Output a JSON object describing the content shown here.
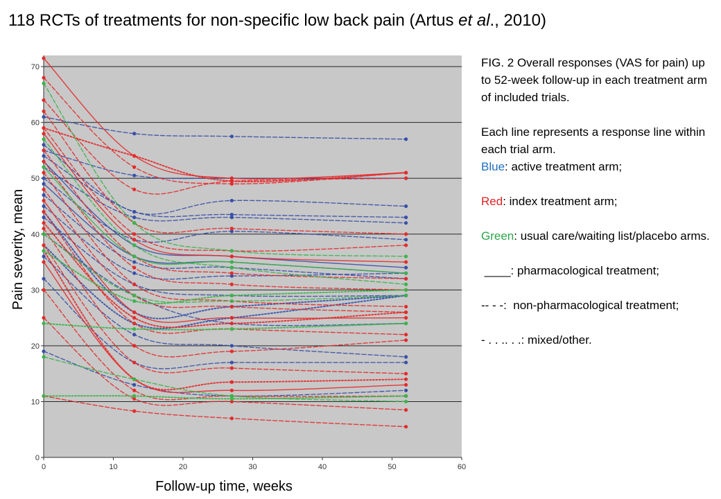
{
  "title": {
    "before": "118 RCTs of treatments for non-specific low back pain (Artus ",
    "etal": "et al",
    "after": "., 2010)"
  },
  "caption": {
    "fig": "FIG. 2 Overall responses (VAS for pain) up to 52-week follow-up in each treatment arm of included trials.",
    "intro": "Each line represents a response line within each trial arm.",
    "blue_word": "Blue",
    "blue_rest": ": active treatment arm;",
    "red_word": "Red",
    "red_rest": ": index treatment arm;",
    "green_word": "Green",
    "green_rest": ": usual care/waiting list/placebo arms.",
    "pharma": " ____: pharmacological treatment;",
    "nonpharma": "-- - -:  non-pharmacological treatment;",
    "mixed": "- . . .. . .: mixed/other."
  },
  "chart_data": {
    "type": "line",
    "xlabel": "Follow-up time, weeks",
    "ylabel": "Pain severity,  mean",
    "xlim": [
      0,
      60
    ],
    "ylim": [
      0,
      72
    ],
    "xticks": [
      0,
      10,
      20,
      30,
      40,
      50,
      60
    ],
    "yticks": [
      0,
      10,
      20,
      30,
      40,
      50,
      60,
      70
    ],
    "grid": "horizontal",
    "background": "#c8c8c8",
    "colors": {
      "blue": "#3850a8",
      "red": "#e52a2a",
      "green": "#3cb44a"
    },
    "series": [
      {
        "color": "blue",
        "style": "dashed",
        "x": [
          0,
          13,
          27,
          52
        ],
        "y": [
          61,
          58,
          57.5,
          57
        ]
      },
      {
        "color": "blue",
        "style": "dashed",
        "x": [
          0,
          13,
          27,
          52
        ],
        "y": [
          55,
          50.5,
          50,
          50
        ]
      },
      {
        "color": "blue",
        "style": "dashed",
        "x": [
          0,
          13,
          27,
          52
        ],
        "y": [
          56,
          44,
          46,
          45
        ]
      },
      {
        "color": "blue",
        "style": "dashed",
        "x": [
          0,
          13,
          27,
          52
        ],
        "y": [
          54,
          44,
          43.5,
          43
        ]
      },
      {
        "color": "blue",
        "style": "dashed",
        "x": [
          0,
          13,
          27,
          52
        ],
        "y": [
          52,
          43,
          43,
          42
        ]
      },
      {
        "color": "blue",
        "style": "dashed",
        "x": [
          0,
          13,
          27,
          52
        ],
        "y": [
          50,
          39,
          40.5,
          39
        ]
      },
      {
        "color": "blue",
        "style": "solid",
        "x": [
          0,
          13,
          27,
          52
        ],
        "y": [
          53,
          38,
          36,
          34
        ]
      },
      {
        "color": "blue",
        "style": "solid",
        "x": [
          0,
          13,
          27,
          52
        ],
        "y": [
          49,
          36,
          35,
          33
        ]
      },
      {
        "color": "blue",
        "style": "dashed",
        "x": [
          0,
          13,
          27,
          52
        ],
        "y": [
          47,
          35,
          34,
          32
        ]
      },
      {
        "color": "blue",
        "style": "dashed",
        "x": [
          0,
          13,
          27,
          52
        ],
        "y": [
          45,
          33,
          32.5,
          33
        ]
      },
      {
        "color": "blue",
        "style": "dashed",
        "x": [
          0,
          13,
          27,
          52
        ],
        "y": [
          43,
          31,
          29,
          29
        ]
      },
      {
        "color": "blue",
        "style": "dashed",
        "x": [
          0,
          13,
          27,
          52
        ],
        "y": [
          40,
          29,
          24,
          24
        ]
      },
      {
        "color": "blue",
        "style": "dashed",
        "x": [
          0,
          13,
          27,
          52
        ],
        "y": [
          36,
          22,
          20,
          18
        ]
      },
      {
        "color": "blue",
        "style": "dashed",
        "x": [
          0,
          13,
          27,
          52
        ],
        "y": [
          32,
          17,
          17,
          17
        ]
      },
      {
        "color": "blue",
        "style": "dashed",
        "x": [
          0,
          13,
          27,
          52
        ],
        "y": [
          19,
          13,
          11,
          12
        ]
      },
      {
        "color": "blue",
        "style": "dotted",
        "x": [
          0,
          13,
          27,
          52
        ],
        "y": [
          44,
          26,
          27,
          29
        ]
      },
      {
        "color": "blue",
        "style": "dotted",
        "x": [
          0,
          13,
          27,
          52
        ],
        "y": [
          38,
          24,
          25,
          29
        ]
      },
      {
        "color": "red",
        "style": "solid",
        "x": [
          0,
          13,
          27,
          52
        ],
        "y": [
          71.5,
          54,
          50,
          51
        ]
      },
      {
        "color": "red",
        "style": "dashed",
        "x": [
          0,
          13,
          27,
          52
        ],
        "y": [
          68,
          52,
          49,
          51
        ]
      },
      {
        "color": "red",
        "style": "dashed",
        "x": [
          0,
          13,
          27,
          52
        ],
        "y": [
          64,
          48,
          49.5,
          50
        ]
      },
      {
        "color": "red",
        "style": "dashed",
        "x": [
          0,
          13,
          27,
          52
        ],
        "y": [
          62,
          42,
          41,
          40
        ]
      },
      {
        "color": "red",
        "style": "dashed",
        "x": [
          0,
          13,
          27,
          52
        ],
        "y": [
          59,
          40,
          37,
          38
        ]
      },
      {
        "color": "red",
        "style": "solid",
        "x": [
          0,
          13,
          27,
          52
        ],
        "y": [
          58,
          39,
          36,
          35
        ]
      },
      {
        "color": "red",
        "style": "dashed",
        "x": [
          0,
          13,
          27,
          52
        ],
        "y": [
          55,
          36,
          33,
          32
        ]
      },
      {
        "color": "red",
        "style": "dashed",
        "x": [
          0,
          13,
          27,
          52
        ],
        "y": [
          53,
          34,
          31,
          30
        ]
      },
      {
        "color": "red",
        "style": "dashed",
        "x": [
          0,
          13,
          27,
          52
        ],
        "y": [
          51,
          31,
          28,
          27
        ]
      },
      {
        "color": "red",
        "style": "dashed",
        "x": [
          0,
          13,
          27,
          52
        ],
        "y": [
          48,
          29,
          27,
          26
        ]
      },
      {
        "color": "red",
        "style": "solid",
        "x": [
          0,
          13,
          27,
          52
        ],
        "y": [
          46,
          26,
          25,
          25
        ]
      },
      {
        "color": "red",
        "style": "dashed",
        "x": [
          0,
          13,
          27,
          52
        ],
        "y": [
          44,
          24,
          23,
          22
        ]
      },
      {
        "color": "red",
        "style": "dashed",
        "x": [
          0,
          13,
          27,
          52
        ],
        "y": [
          41,
          20,
          19,
          21
        ]
      },
      {
        "color": "red",
        "style": "dashed",
        "x": [
          0,
          13,
          27,
          52
        ],
        "y": [
          38,
          17,
          16,
          15
        ]
      },
      {
        "color": "red",
        "style": "solid",
        "x": [
          0,
          13,
          27,
          52
        ],
        "y": [
          35,
          14,
          12,
          13
        ]
      },
      {
        "color": "red",
        "style": "dashed",
        "x": [
          0,
          13,
          27,
          52
        ],
        "y": [
          30,
          12,
          11,
          11
        ]
      },
      {
        "color": "red",
        "style": "dashed",
        "x": [
          0,
          13,
          27,
          52
        ],
        "y": [
          25,
          10.5,
          10,
          8.5
        ]
      },
      {
        "color": "red",
        "style": "dashed",
        "x": [
          0,
          13,
          27,
          52
        ],
        "y": [
          11,
          8.3,
          7,
          5.5
        ]
      },
      {
        "color": "red",
        "style": "dotted",
        "x": [
          0,
          13,
          27,
          52
        ],
        "y": [
          59,
          54,
          49.5,
          51
        ]
      },
      {
        "color": "red",
        "style": "dotted",
        "x": [
          0,
          13,
          27,
          52
        ],
        "y": [
          42,
          25,
          24,
          26
        ]
      },
      {
        "color": "red",
        "style": "dotted",
        "x": [
          0,
          13,
          27,
          52
        ],
        "y": [
          37,
          14,
          13.5,
          14
        ]
      },
      {
        "color": "green",
        "style": "dashed",
        "x": [
          0,
          13,
          27,
          52
        ],
        "y": [
          67,
          42,
          37,
          36
        ]
      },
      {
        "color": "green",
        "style": "dashed",
        "x": [
          0,
          13,
          27,
          52
        ],
        "y": [
          57,
          38,
          34,
          31
        ]
      },
      {
        "color": "green",
        "style": "solid",
        "x": [
          0,
          13,
          27,
          52
        ],
        "y": [
          52,
          36,
          35,
          33
        ]
      },
      {
        "color": "green",
        "style": "dashed",
        "x": [
          0,
          13,
          27,
          52
        ],
        "y": [
          40,
          29,
          28,
          29
        ]
      },
      {
        "color": "green",
        "style": "dotted",
        "x": [
          0,
          13,
          27,
          52
        ],
        "y": [
          37,
          28,
          29,
          30
        ]
      },
      {
        "color": "green",
        "style": "dotted",
        "x": [
          0,
          13,
          27,
          52
        ],
        "y": [
          24,
          23,
          23,
          24
        ]
      },
      {
        "color": "green",
        "style": "dashed",
        "x": [
          0,
          13,
          27,
          52
        ],
        "y": [
          18,
          14,
          11,
          10
        ]
      },
      {
        "color": "green",
        "style": "dotted",
        "x": [
          0,
          13,
          27,
          52
        ],
        "y": [
          11,
          11,
          10.5,
          11
        ]
      }
    ]
  }
}
